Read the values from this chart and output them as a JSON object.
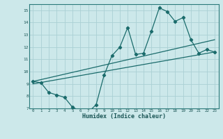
{
  "xlabel": "Humidex (Indice chaleur)",
  "ylabel": "",
  "background_color": "#cce8ea",
  "grid_color": "#aad0d4",
  "line_color": "#1a6b6b",
  "xlim": [
    -0.5,
    23.5
  ],
  "ylim": [
    7,
    15.5
  ],
  "xticks": [
    0,
    1,
    2,
    3,
    4,
    5,
    6,
    7,
    8,
    9,
    10,
    11,
    12,
    13,
    14,
    15,
    16,
    17,
    18,
    19,
    20,
    21,
    22,
    23
  ],
  "yticks": [
    7,
    8,
    9,
    10,
    11,
    12,
    13,
    14,
    15
  ],
  "line1_x": [
    0,
    1,
    2,
    3,
    4,
    5,
    6,
    7,
    8,
    9,
    10,
    11,
    12,
    13,
    14,
    15,
    16,
    17,
    18,
    19,
    20,
    21,
    22,
    23
  ],
  "line1_y": [
    9.2,
    9.1,
    8.3,
    8.1,
    7.9,
    7.1,
    6.8,
    6.7,
    7.3,
    9.7,
    11.3,
    12.0,
    13.6,
    11.4,
    11.5,
    13.3,
    15.2,
    14.9,
    14.1,
    14.4,
    12.6,
    11.5,
    11.8,
    11.6
  ],
  "line2_x": [
    0,
    23
  ],
  "line2_y": [
    9.2,
    12.6
  ],
  "line3_x": [
    0,
    23
  ],
  "line3_y": [
    9.0,
    11.6
  ]
}
